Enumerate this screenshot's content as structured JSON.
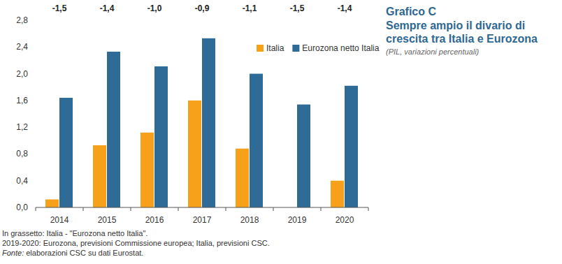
{
  "chart_data": {
    "type": "bar",
    "title": "Grafico C",
    "subtitle": "Sempre ampio il divario di crescita tra Italia e Eurozona",
    "ylabel": "(PIL, variazioni percentuali)",
    "categories": [
      "2014",
      "2015",
      "2016",
      "2017",
      "2018",
      "2019",
      "2020"
    ],
    "series": [
      {
        "name": "Italia",
        "color": "#f7a11a",
        "values": [
          0.12,
          0.93,
          1.12,
          1.6,
          0.88,
          0.0,
          0.4
        ]
      },
      {
        "name": "Eurozona netto Italia",
        "color": "#2e6b96",
        "values": [
          1.64,
          2.33,
          2.11,
          2.53,
          2.0,
          1.54,
          1.82
        ]
      }
    ],
    "annotations": [
      "-1,5",
      "-1,4",
      "-1,0",
      "-0,9",
      "-1,1",
      "-1,5",
      "-1,4"
    ],
    "ylim": [
      0,
      2.8
    ],
    "yticks": [
      {
        "value": 0,
        "label": "0,0"
      },
      {
        "value": 0.4,
        "label": "0,4"
      },
      {
        "value": 0.8,
        "label": "0,8"
      },
      {
        "value": 1.2,
        "label": "1,2"
      },
      {
        "value": 1.6,
        "label": "1,6"
      },
      {
        "value": 2.0,
        "label": "2,0"
      },
      {
        "value": 2.4,
        "label": "2,4"
      },
      {
        "value": 2.8,
        "label": "2,8"
      }
    ],
    "grid": false,
    "legend": "top-right",
    "notes": [
      "In grassetto: Italia - \"Eurozona netto Italia\".",
      "2019-2020: Eurozona, previsioni Commissione europea; Italia, previsioni CSC.",
      "Fonte: elaborazioni CSC su dati Eurostat."
    ]
  }
}
